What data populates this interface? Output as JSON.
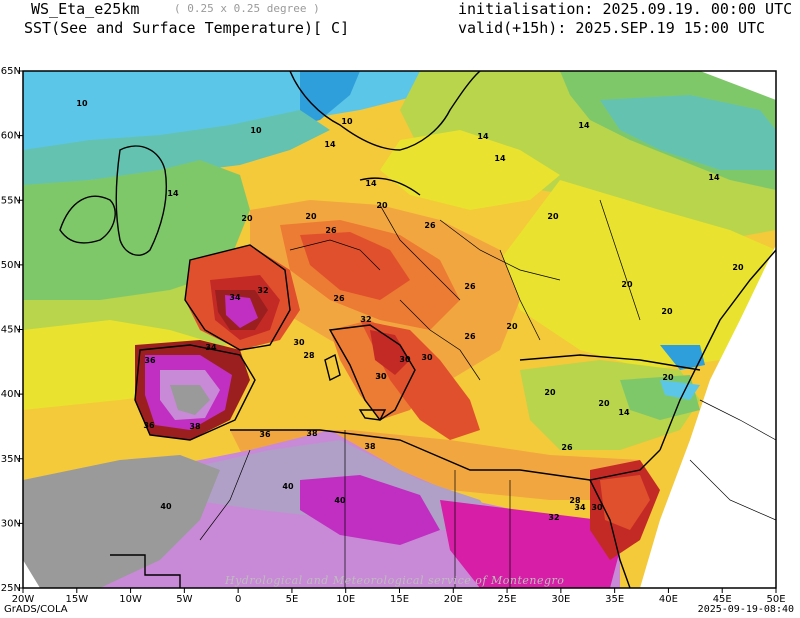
{
  "header": {
    "model": "WS_Eta_e25km",
    "resolution": "( 0.25 x 0.25 degree )",
    "title": "SST(See and Surface Temperature)[ C]",
    "initialisation": "initialisation: 2025.09.19. 00:00 UTC",
    "valid": "valid(+15h): 2025.SEP.19 15:00 UTC"
  },
  "axes": {
    "x_ticks": [
      "20W",
      "15W",
      "10W",
      "5W",
      "0",
      "5E",
      "10E",
      "15E",
      "20E",
      "25E",
      "30E",
      "35E",
      "40E",
      "45E",
      "50E"
    ],
    "y_ticks": [
      "65N",
      "60N",
      "55N",
      "50N",
      "45N",
      "40N",
      "35N",
      "30N",
      "25N"
    ]
  },
  "contour_labels": [
    "10",
    "10",
    "10",
    "14",
    "14",
    "14",
    "14",
    "14",
    "14",
    "14",
    "20",
    "20",
    "20",
    "20",
    "20",
    "20",
    "20",
    "20",
    "20",
    "26",
    "26",
    "26",
    "26",
    "26",
    "28",
    "30",
    "30",
    "30",
    "30",
    "30",
    "32",
    "32",
    "34",
    "34",
    "36",
    "36",
    "36",
    "38",
    "38",
    "38",
    "40",
    "40",
    "40",
    "34",
    "32",
    "30",
    "28",
    "26",
    "20",
    "14",
    "20"
  ],
  "colors": {
    "c_lt6": "#2f9fdc",
    "c6_10": "#5cc6e8",
    "c10_14": "#63c3b0",
    "c14_18": "#7fc86a",
    "c18_20": "#b8d54c",
    "c20_22": "#e9e22e",
    "c22_24": "#f4c93a",
    "c24_26": "#f2a640",
    "c26_28": "#ec7b33",
    "c28_30": "#e0502c",
    "c30_32": "#c32a26",
    "c32_34": "#9b1f1f",
    "c34_36": "#d61ea6",
    "c36_38": "#c02fc2",
    "c38_40": "#c88ad6",
    "c40_44": "#b0a0c8",
    "c_ge44": "#9a9a9a"
  },
  "footer": {
    "credit": "Hydrological and Meteorological service of Montenegro",
    "software": "GrADS/COLA",
    "timestamp": "2025-09-19-08:40"
  }
}
